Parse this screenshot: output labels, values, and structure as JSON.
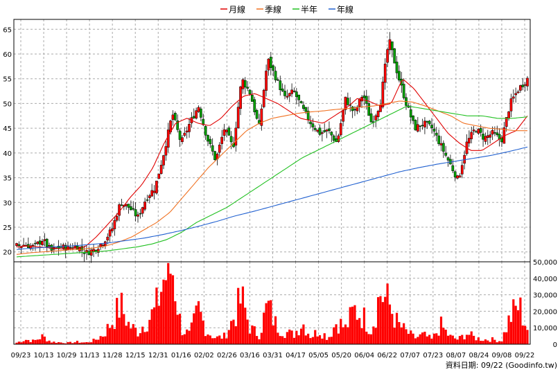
{
  "legend": [
    {
      "label": "月線",
      "color": "#e00000"
    },
    {
      "label": "季線",
      "color": "#f07020"
    },
    {
      "label": "半年",
      "color": "#20c020"
    },
    {
      "label": "年線",
      "color": "#2060d0"
    }
  ],
  "source_text": "資料日期: 09/22  (Goodinfo.tw)",
  "colors": {
    "up": "#ff0000",
    "down": "#00a000",
    "volume": "#ff0000",
    "grid": "#aaaaaa",
    "frame": "#000000"
  },
  "chart_data": [
    {
      "type": "candlestick",
      "ylim": [
        18,
        67
      ],
      "y_ticks": [
        20,
        25,
        30,
        35,
        40,
        45,
        50,
        55,
        60,
        65
      ],
      "x_ticks": [
        "09/23",
        "10/13",
        "10/29",
        "11/13",
        "11/28",
        "12/15",
        "12/31",
        "01/16",
        "02/02",
        "02/26",
        "03/16",
        "03/31",
        "04/17",
        "05/05",
        "05/20",
        "06/04",
        "06/22",
        "07/07",
        "07/23",
        "08/07",
        "08/24",
        "09/08",
        "09/22"
      ],
      "grid": true,
      "legend_position": "top",
      "close_keypoints": [
        21.2,
        21.5,
        21.0,
        22.5,
        20.2,
        21.0,
        20.8,
        21.2,
        19.8,
        20.5,
        22.0,
        24.5,
        30.0,
        29.0,
        27.0,
        31.0,
        33.0,
        40.0,
        48.0,
        42.0,
        46.0,
        49.5,
        43.0,
        38.5,
        45.0,
        41.0,
        55.0,
        52.0,
        45.0,
        59.0,
        55.0,
        51.0,
        52.5,
        49.0,
        46.0,
        44.0,
        44.5,
        42.0,
        51.0,
        48.0,
        52.0,
        46.0,
        50.0,
        63.0,
        56.0,
        50.0,
        45.0,
        46.0,
        45.0,
        41.5,
        38.0,
        34.5,
        42.0,
        45.0,
        43.0,
        44.0,
        42.5,
        50.0,
        53.0,
        55.0
      ],
      "series": [
        {
          "name": "月線",
          "values": [
            21.0,
            21.2,
            21.0,
            20.8,
            20.6,
            20.7,
            21.0,
            23.0,
            25.5,
            28.0,
            31.0,
            33.5,
            37.0,
            42.0,
            46.0,
            47.0,
            46.0,
            45.5,
            47.0,
            49.5,
            51.5,
            52.0,
            51.0,
            50.0,
            48.5,
            47.0,
            46.5,
            46.0,
            47.5,
            49.0,
            51.0,
            50.5,
            49.5,
            50.0,
            55.0,
            53.0,
            50.0,
            47.0,
            44.0,
            42.0,
            40.5,
            40.5,
            42.0,
            43.5,
            44.5,
            47.5
          ]
        },
        {
          "name": "季線",
          "values": [
            19.5,
            19.8,
            20.0,
            20.2,
            20.4,
            20.5,
            20.8,
            21.2,
            22.0,
            23.0,
            24.5,
            26.0,
            28.0,
            31.0,
            34.0,
            37.0,
            39.5,
            42.0,
            44.5,
            46.0,
            47.0,
            47.5,
            48.0,
            48.3,
            48.5,
            48.8,
            49.0,
            49.3,
            49.5,
            50.0,
            50.5,
            50.3,
            49.5,
            48.5,
            47.5,
            46.0,
            45.5,
            45.0,
            44.8,
            44.5,
            44.5
          ]
        },
        {
          "name": "半年",
          "values": [
            19.0,
            19.2,
            19.4,
            19.6,
            19.8,
            20.0,
            20.2,
            20.6,
            21.0,
            21.6,
            22.5,
            24.0,
            26.0,
            27.5,
            29.0,
            31.0,
            33.0,
            35.0,
            37.0,
            39.0,
            40.5,
            42.0,
            43.5,
            45.0,
            46.5,
            48.0,
            49.5,
            49.0,
            48.5,
            48.0,
            47.5,
            47.5,
            47.0,
            47.0,
            47.3
          ]
        },
        {
          "name": "年線",
          "values": [
            20.5,
            20.8,
            21.0,
            21.2,
            21.5,
            21.8,
            22.3,
            22.8,
            23.5,
            24.3,
            25.2,
            26.2,
            27.3,
            28.2,
            29.2,
            30.2,
            31.2,
            32.2,
            33.2,
            34.2,
            35.2,
            36.2,
            37.0,
            37.7,
            38.3,
            38.9,
            39.5,
            40.3,
            41.2
          ]
        }
      ]
    },
    {
      "type": "bar",
      "ylim": [
        0,
        50000
      ],
      "y_ticks": [
        0,
        10000,
        20000,
        30000,
        40000,
        50000
      ],
      "y_tick_labels": [
        "0",
        "10,000",
        "20,000",
        "30,000",
        "40,000",
        "50,000"
      ],
      "volume_keypoints": [
        1000,
        3000,
        2000,
        5000,
        1500,
        1200,
        900,
        1500,
        1000,
        2500,
        6000,
        14000,
        25000,
        12000,
        8000,
        15000,
        21000,
        42000,
        49000,
        10000,
        6000,
        22000,
        8000,
        4000,
        5000,
        16000,
        29000,
        10000,
        6000,
        25000,
        12000,
        8000,
        6000,
        14000,
        5000,
        9000,
        4000,
        15000,
        10000,
        22000,
        18000,
        9000,
        33000,
        26000,
        13000,
        8000,
        4000,
        6000,
        3000,
        12000,
        5000,
        3000,
        7000,
        4000,
        3000,
        3000,
        2000,
        17000,
        25000,
        10000
      ]
    }
  ]
}
